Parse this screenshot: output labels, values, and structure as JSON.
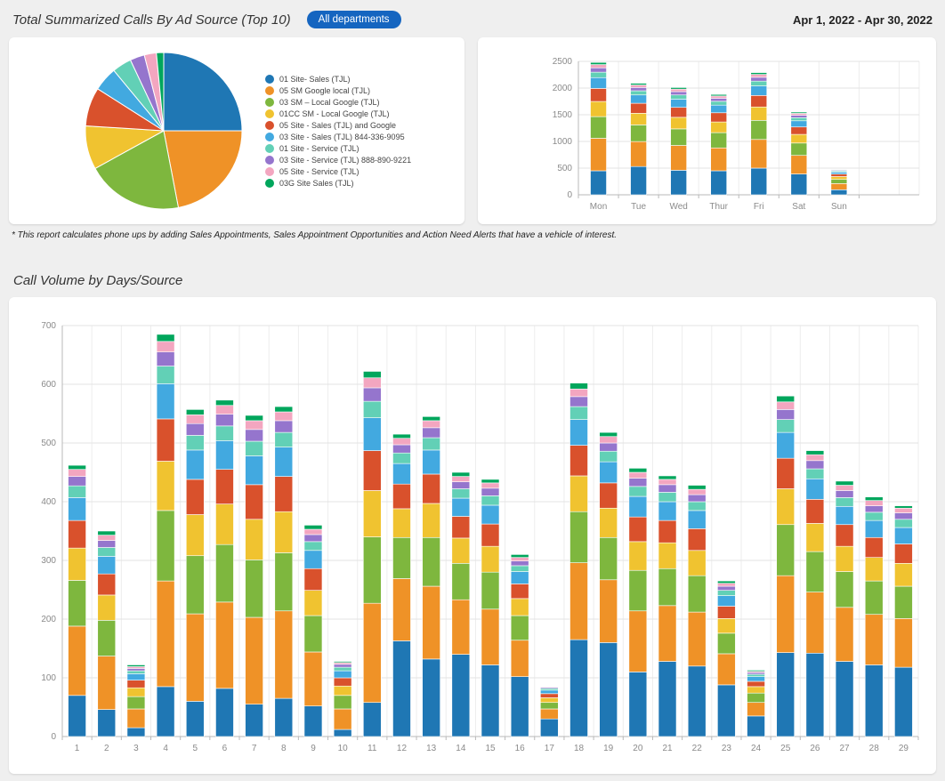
{
  "header": {
    "title": "Total Summarized Calls By Ad Source (Top 10)",
    "department_badge": "All departments",
    "date_range": "Apr 1, 2022 - Apr 30, 2022"
  },
  "note": "* This report calculates phone ups by adding Sales Appointments, Sales Appointment Opportunities and Action Need Alerts that have a vehicle of interest.",
  "section_title": "Call Volume by Days/Source",
  "palette": [
    "#1f77b4",
    "#ef9227",
    "#7eb73e",
    "#f0c330",
    "#d9512c",
    "#42a9e0",
    "#62d0b6",
    "#9575cd",
    "#f3a6c0",
    "#00a65c"
  ],
  "legend_labels": [
    "01 Site- Sales (TJL)",
    "05 SM   Google local (TJL)",
    "03 SM – Local Google (TJL)",
    "01CC SM - Local Google (TJL)",
    "05 Site - Sales (TJL) and Google",
    "03 Site - Sales (TJL) 844-336-9095",
    "01 Site - Service (TJL)",
    "03 Site - Service (TJL) 888-890-9221",
    "05 Site - Service (TJL)",
    "03G Site   Sales (TJL)"
  ],
  "chart_data": [
    {
      "type": "pie",
      "title": "Total Summarized Calls By Ad Source (Top 10)",
      "labels": [
        "01 Site- Sales (TJL)",
        "05 SM   Google local (TJL)",
        "03 SM – Local Google (TJL)",
        "01CC SM - Local Google (TJL)",
        "05 Site - Sales (TJL) and Google",
        "03 Site - Sales (TJL) 844-336-9095",
        "01 Site - Service (TJL)",
        "03 Site - Service (TJL) 888-890-9221",
        "05 Site - Service (TJL)",
        "03G Site   Sales (TJL)"
      ],
      "values": [
        25,
        22,
        20,
        9,
        8,
        5,
        4,
        3,
        2.5,
        1.5
      ],
      "legend_position": "right"
    },
    {
      "type": "bar",
      "stacked": true,
      "title": "",
      "categories": [
        "Mon",
        "Tue",
        "Wed",
        "Thur",
        "Fri",
        "Sat",
        "Sun"
      ],
      "ylim": [
        0,
        2500
      ],
      "ytick": 500,
      "grid": true,
      "series": [
        {
          "name": "01 Site- Sales (TJL)",
          "values": [
            450,
            530,
            460,
            450,
            500,
            390,
            95
          ]
        },
        {
          "name": "05 SM   Google local (TJL)",
          "values": [
            609,
            468,
            465,
            429,
            537,
            348,
            116
          ]
        },
        {
          "name": "03 SM – Local Google (TJL)",
          "values": [
            406,
            312,
            310,
            286,
            358,
            232,
            77
          ]
        },
        {
          "name": "01CC SM - Local Google (TJL)",
          "values": [
            284,
            218,
            217,
            200,
            251,
            162,
            54
          ]
        },
        {
          "name": "05 Site - Sales (TJL) and Google",
          "values": [
            244,
            187,
            186,
            172,
            215,
            139,
            46
          ]
        },
        {
          "name": "03 Site - Sales (TJL) 844-336-9095",
          "values": [
            203,
            156,
            155,
            143,
            179,
            116,
            39
          ]
        },
        {
          "name": "01 Site - Service (TJL)",
          "values": [
            102,
            78,
            78,
            72,
            90,
            58,
            19
          ]
        },
        {
          "name": "03 Site - Service (TJL) 888-890-9221",
          "values": [
            81,
            62,
            62,
            57,
            72,
            46,
            15
          ]
        },
        {
          "name": "05 Site - Service (TJL)",
          "values": [
            61,
            47,
            47,
            43,
            54,
            35,
            12
          ]
        },
        {
          "name": "03G Site   Sales (TJL)",
          "values": [
            40,
            32,
            30,
            28,
            34,
            24,
            7
          ]
        }
      ]
    },
    {
      "type": "bar",
      "stacked": true,
      "title": "Call Volume by Days/Source",
      "categories": [
        "1",
        "2",
        "3",
        "4",
        "5",
        "6",
        "7",
        "8",
        "9",
        "10",
        "11",
        "12",
        "13",
        "14",
        "15",
        "16",
        "17",
        "18",
        "19",
        "20",
        "21",
        "22",
        "23",
        "24",
        "25",
        "26",
        "27",
        "28",
        "29"
      ],
      "ylim": [
        0,
        700
      ],
      "ytick": 100,
      "grid": true,
      "series": [
        {
          "name": "01 Site- Sales (TJL)",
          "values": [
            70,
            46,
            15,
            85,
            60,
            82,
            55,
            65,
            52,
            12,
            58,
            163,
            132,
            140,
            122,
            102,
            30,
            165,
            160,
            110,
            128,
            120,
            88,
            35,
            143,
            142,
            128,
            122,
            118
          ]
        },
        {
          "name": "05 SM   Google local (TJL)",
          "values": [
            118,
            91,
            32,
            180,
            149,
            147,
            148,
            149,
            92,
            35,
            169,
            106,
            124,
            93,
            95,
            62,
            17,
            131,
            107,
            104,
            95,
            92,
            53,
            23,
            131,
            104,
            92,
            86,
            83
          ]
        },
        {
          "name": "03 SM – Local Google (TJL)",
          "values": [
            78,
            61,
            21,
            120,
            99,
            98,
            98,
            99,
            62,
            23,
            113,
            70,
            83,
            62,
            63,
            42,
            11,
            87,
            72,
            69,
            63,
            62,
            35,
            16,
            87,
            69,
            61,
            57,
            55
          ]
        },
        {
          "name": "01CC SM - Local Google (TJL)",
          "values": [
            55,
            43,
            15,
            84,
            70,
            69,
            69,
            70,
            43,
            16,
            79,
            49,
            58,
            43,
            44,
            29,
            8,
            61,
            50,
            49,
            44,
            43,
            25,
            11,
            61,
            48,
            43,
            40,
            39
          ]
        },
        {
          "name": "05 Site - Sales (TJL) and Google",
          "values": [
            47,
            36,
            13,
            72,
            60,
            59,
            59,
            60,
            37,
            14,
            68,
            42,
            50,
            37,
            38,
            25,
            7,
            52,
            43,
            42,
            38,
            37,
            21,
            9,
            52,
            41,
            37,
            34,
            33
          ]
        },
        {
          "name": "03 Site - Sales (TJL) 844-336-9095",
          "values": [
            39,
            30,
            11,
            60,
            50,
            49,
            49,
            50,
            31,
            12,
            56,
            35,
            41,
            31,
            32,
            21,
            6,
            44,
            36,
            35,
            32,
            31,
            18,
            8,
            44,
            35,
            31,
            29,
            28
          ]
        },
        {
          "name": "01 Site - Service (TJL)",
          "values": [
            20,
            15,
            5,
            30,
            25,
            25,
            25,
            25,
            15,
            6,
            28,
            18,
            21,
            16,
            16,
            10,
            3,
            22,
            18,
            17,
            16,
            15,
            9,
            4,
            22,
            17,
            15,
            14,
            14
          ]
        },
        {
          "name": "03 Site - Service (TJL) 888-890-9221",
          "values": [
            16,
            12,
            4,
            24,
            20,
            20,
            20,
            20,
            12,
            5,
            23,
            14,
            17,
            12,
            13,
            8,
            2,
            17,
            14,
            14,
            13,
            12,
            7,
            3,
            17,
            14,
            12,
            11,
            11
          ]
        },
        {
          "name": "05 Site - Service (TJL)",
          "values": [
            12,
            9,
            3,
            18,
            15,
            15,
            15,
            15,
            9,
            3,
            17,
            11,
            12,
            9,
            9,
            6,
            1,
            13,
            11,
            10,
            9,
            9,
            5,
            2,
            13,
            10,
            9,
            9,
            8
          ]
        },
        {
          "name": "03G Site   Sales (TJL)",
          "values": [
            7,
            7,
            3,
            12,
            9,
            9,
            9,
            9,
            7,
            2,
            11,
            7,
            7,
            7,
            6,
            5,
            0,
            10,
            7,
            7,
            6,
            7,
            4,
            2,
            10,
            7,
            7,
            6,
            4
          ]
        }
      ]
    }
  ]
}
